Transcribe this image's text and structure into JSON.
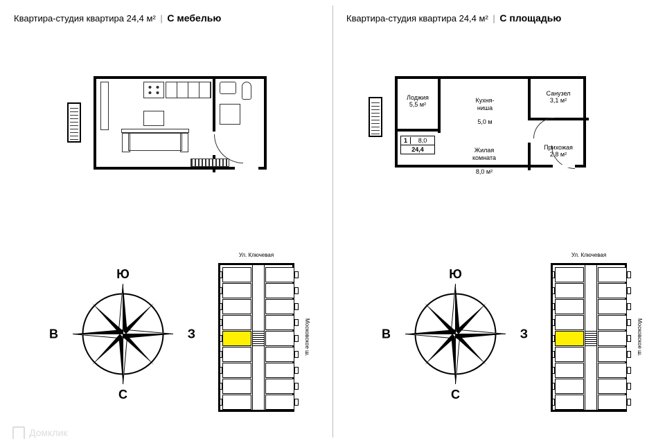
{
  "left": {
    "title_prefix": "Квартира-студия квартира 24,4 м²",
    "separator": "|",
    "mode": "С мебелью"
  },
  "right": {
    "title_prefix": "Квартира-студия квартира 24,4 м²",
    "separator": "|",
    "mode": "С площадью",
    "rooms": {
      "loggia": {
        "name": "Лоджия",
        "area": "5,5 м²"
      },
      "kitchen": {
        "name": "Кухня-\nниша",
        "area": "5,0 м"
      },
      "bathroom": {
        "name": "Санузел",
        "area": "3,1 м²"
      },
      "living": {
        "name": "Жилая\nкомната",
        "area": "8,0 м²"
      },
      "hallway": {
        "name": "Прихожая",
        "area": "2,8 м²"
      }
    },
    "info": {
      "rooms_count": "1",
      "top": "8,0",
      "bottom": "24,4"
    }
  },
  "compass": {
    "north": "Ю",
    "south": "С",
    "east": "В",
    "west": "З"
  },
  "building": {
    "street_top": "Ул. Ключевая",
    "street_right": "Московское ш.",
    "highlight_unit": {
      "row": 4,
      "col": 0
    },
    "grid": {
      "rows": 9,
      "cols": 2,
      "unit_w": 42,
      "unit_h": 22
    }
  },
  "colors": {
    "highlight": "#ffef00",
    "line": "#000000",
    "background": "#ffffff",
    "divider": "#bbbbbb",
    "watermark": "#dddddd"
  },
  "watermark": "Домклик"
}
